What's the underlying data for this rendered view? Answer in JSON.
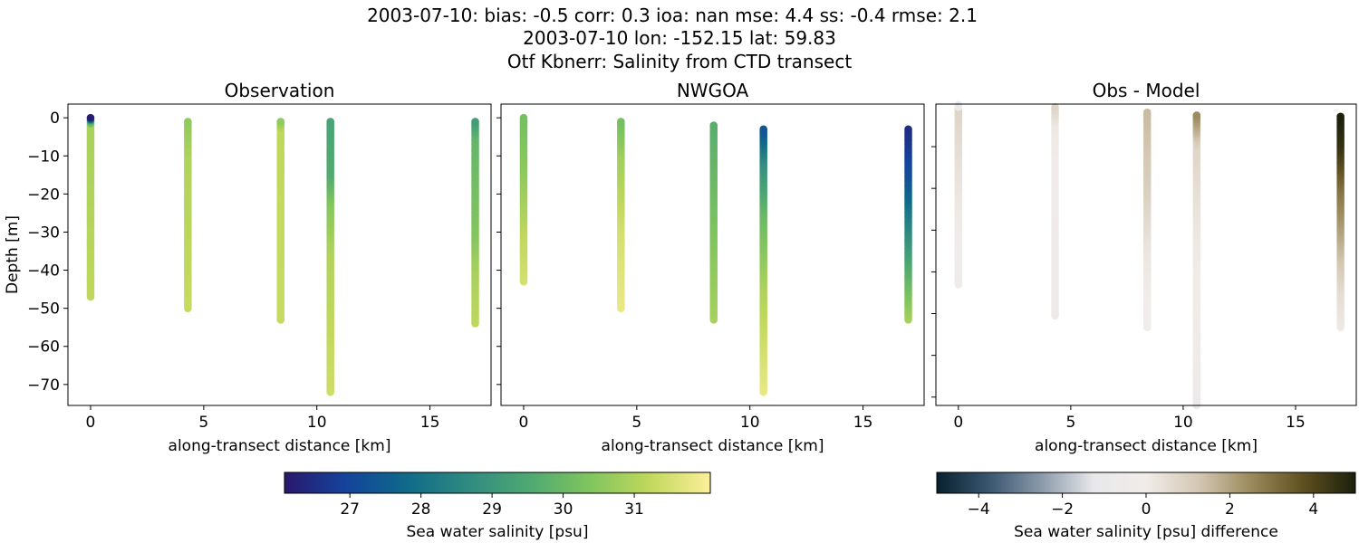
{
  "title_lines": [
    "2003-07-10: bias: -0.5  corr: 0.3  ioa: nan  mse: 4.4  ss: -0.4  rmse: 2.1",
    "2003-07-10 lon: -152.15 lat: 59.83",
    "Otf Kbnerr: Salinity from CTD transect"
  ],
  "chart_data": [
    {
      "type": "scatter",
      "title": "Observation",
      "xlabel": "along-transect distance [km]",
      "ylabel": "Depth [m]",
      "xlim": [
        -1,
        17.7
      ],
      "ylim": [
        -75.5,
        3.6
      ],
      "xticks": [
        0,
        5,
        10,
        15
      ],
      "yticks": [
        0,
        -10,
        -20,
        -30,
        -40,
        -50,
        -60,
        -70
      ],
      "ytick_labels_shown": true,
      "colormap": "haline",
      "columns": [
        {
          "x": 0,
          "profile": [
            [
              0,
              26.2
            ],
            [
              -1,
              29.6
            ],
            [
              -2,
              30.9
            ],
            [
              -20,
              31.0
            ],
            [
              -47,
              31.2
            ]
          ]
        },
        {
          "x": 4.3,
          "profile": [
            [
              -1,
              30.6
            ],
            [
              -10,
              31.0
            ],
            [
              -50,
              31.3
            ]
          ]
        },
        {
          "x": 8.4,
          "profile": [
            [
              -1,
              30.6
            ],
            [
              -3,
              31.2
            ],
            [
              -53,
              31.3
            ]
          ]
        },
        {
          "x": 10.6,
          "profile": [
            [
              -1,
              29.4
            ],
            [
              -15,
              29.6
            ],
            [
              -22,
              30.4
            ],
            [
              -35,
              31.0
            ],
            [
              -72,
              31.4
            ]
          ]
        },
        {
          "x": 17,
          "profile": [
            [
              -1,
              29.2
            ],
            [
              -5,
              29.9
            ],
            [
              -30,
              30.4
            ],
            [
              -40,
              30.9
            ],
            [
              -54,
              31.2
            ]
          ]
        }
      ]
    },
    {
      "type": "scatter",
      "title": "NWGOA",
      "xlabel": "along-transect distance [km]",
      "xlim": [
        -1,
        17.7
      ],
      "ylim": [
        -75.5,
        3.6
      ],
      "xticks": [
        0,
        5,
        10,
        15
      ],
      "yticks": [
        0,
        -10,
        -20,
        -30,
        -40,
        -50,
        -60,
        -70
      ],
      "ytick_labels_shown": false,
      "colormap": "haline",
      "columns": [
        {
          "x": 0,
          "profile": [
            [
              0,
              30.2
            ],
            [
              -15,
              30.6
            ],
            [
              -30,
              31.2
            ],
            [
              -43,
              31.5
            ]
          ]
        },
        {
          "x": 4.3,
          "profile": [
            [
              -1,
              30.2
            ],
            [
              -10,
              30.8
            ],
            [
              -30,
              31.5
            ],
            [
              -50,
              31.8
            ]
          ]
        },
        {
          "x": 8.4,
          "profile": [
            [
              -2,
              29.7
            ],
            [
              -20,
              30.1
            ],
            [
              -40,
              30.6
            ],
            [
              -53,
              30.9
            ]
          ]
        },
        {
          "x": 10.6,
          "profile": [
            [
              -3,
              27.3
            ],
            [
              -12,
              28.8
            ],
            [
              -25,
              30.0
            ],
            [
              -45,
              31.0
            ],
            [
              -72,
              31.8
            ]
          ]
        },
        {
          "x": 17,
          "profile": [
            [
              -3,
              26.5
            ],
            [
              -15,
              27.2
            ],
            [
              -30,
              28.7
            ],
            [
              -45,
              30.2
            ],
            [
              -53,
              30.9
            ]
          ]
        }
      ]
    },
    {
      "type": "scatter",
      "title": "Obs - Model",
      "xlabel": "along-transect distance [km]",
      "xlim": [
        -1,
        17.7
      ],
      "ylim": [
        -62,
        10.2
      ],
      "xticks": [
        0,
        5,
        10,
        15
      ],
      "yticks": [
        0,
        -10,
        -20,
        -30,
        -40,
        -50,
        -60
      ],
      "ytick_labels_shown": false,
      "colormap": "diff",
      "columns": [
        {
          "x": 0,
          "profile": [
            [
              10.2,
              -1.5
            ],
            [
              9,
              0.8
            ],
            [
              0,
              0.5
            ],
            [
              -15,
              0.1
            ],
            [
              -33,
              -0.2
            ]
          ]
        },
        {
          "x": 4.3,
          "profile": [
            [
              9.5,
              0.8
            ],
            [
              5,
              0.1
            ],
            [
              -20,
              -0.2
            ],
            [
              -40.5,
              -0.6
            ]
          ]
        },
        {
          "x": 8.4,
          "profile": [
            [
              8.4,
              1.5
            ],
            [
              -10,
              1.0
            ],
            [
              -25,
              0.2
            ],
            [
              -43.3,
              -0.1
            ]
          ]
        },
        {
          "x": 10.6,
          "profile": [
            [
              7.6,
              2.5
            ],
            [
              0,
              0.8
            ],
            [
              -15,
              0.3
            ],
            [
              -35,
              -0.1
            ],
            [
              -50,
              -0.3
            ],
            [
              -62,
              -0.8
            ]
          ]
        },
        {
          "x": 17,
          "profile": [
            [
              7.6,
              5.0
            ],
            [
              0,
              4.5
            ],
            [
              -10,
              3.0
            ],
            [
              -25,
              1.5
            ],
            [
              -35,
              0.5
            ],
            [
              -43.3,
              0.1
            ]
          ]
        }
      ]
    }
  ],
  "colorbars": [
    {
      "label": "Sea water salinity [psu]",
      "range": [
        26.08,
        32.07
      ],
      "ticks": [
        27,
        28,
        29,
        30,
        31
      ],
      "colormap": "haline"
    },
    {
      "label": "Sea water salinity [psu] difference",
      "range": [
        -5,
        5
      ],
      "ticks": [
        -4,
        -2,
        0,
        2,
        4
      ],
      "colormap": "diff"
    }
  ],
  "colormaps": {
    "haline": [
      "#2a186c",
      "#14439c",
      "#0f6a8a",
      "#2f8a81",
      "#4ea873",
      "#7fc45e",
      "#c0d85c",
      "#fdef9a"
    ],
    "diff": [
      "#08202e",
      "#3a5670",
      "#8a9aaa",
      "#e8e8ea",
      "#f1ece9",
      "#d4c8b4",
      "#9b8a5c",
      "#5f5020",
      "#1b200c"
    ]
  }
}
